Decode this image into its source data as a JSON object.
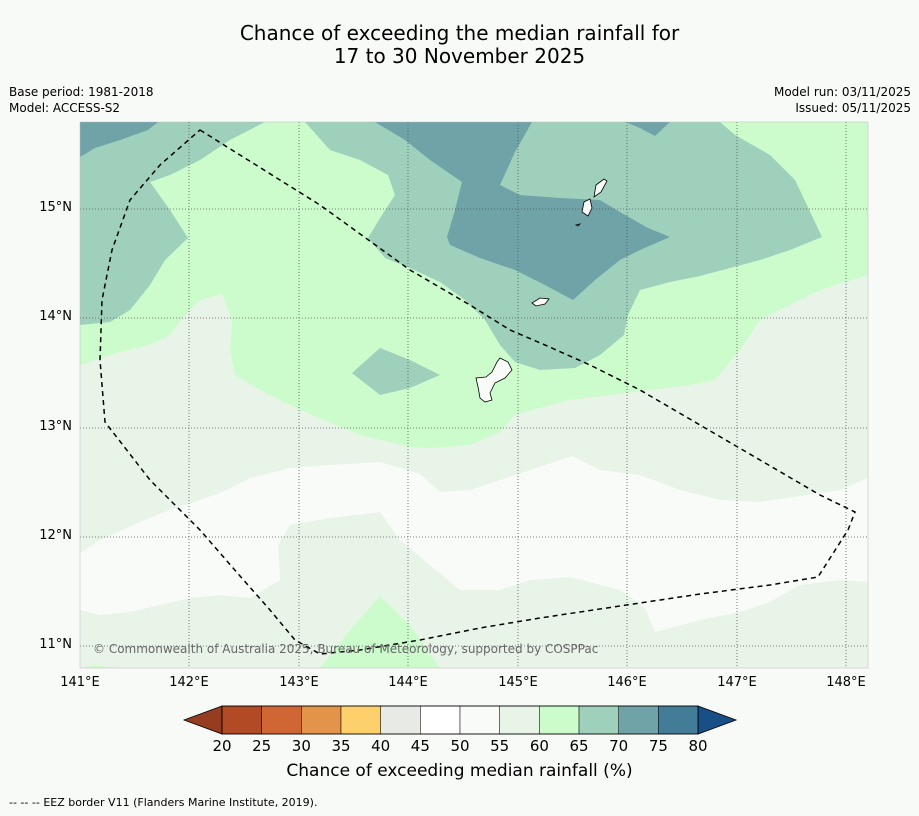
{
  "title": {
    "line1": "Chance of exceeding the median rainfall for",
    "line2": "17 to 30 November 2025"
  },
  "meta": {
    "base_period": "Base period: 1981-2018",
    "model": "Model: ACCESS-S2",
    "model_run": "Model run: 03/11/2025",
    "issued": "Issued: 05/11/2025"
  },
  "map": {
    "lat_labels": [
      "15°N",
      "14°N",
      "13°N",
      "12°N",
      "11°N"
    ],
    "lon_labels": [
      "141°E",
      "142°E",
      "143°E",
      "144°E",
      "145°E",
      "146°E",
      "147°E",
      "148°E"
    ],
    "copyright": "© Commonwealth of Australia 2025, Bureau of Meteorology, supported by COSPPac",
    "colors": {
      "p50_55": "#f9fbf8",
      "p55_60": "#e9f4e8",
      "p60_65": "#ccfccc",
      "p65_70": "#9ed0bb",
      "p70_75": "#6fa3a8",
      "land": "#f9fbf8",
      "eez": "#000000"
    }
  },
  "colorbar": {
    "ticks": [
      "20",
      "25",
      "30",
      "35",
      "40",
      "45",
      "50",
      "55",
      "60",
      "65",
      "70",
      "75",
      "80"
    ],
    "segment_colors": [
      "#b24a26",
      "#d06634",
      "#e3944a",
      "#fdd06c",
      "#e8ebe5",
      "#ffffff",
      "#f9fbf8",
      "#e9f4e8",
      "#ccfccc",
      "#9ed0bb",
      "#6fa3a8",
      "#427c97"
    ],
    "low_extend_color": "#963c20",
    "high_extend_color": "#174f86",
    "title": "Chance of exceeding median rainfall (%)"
  },
  "legend": {
    "eez_line_sample": "--  --  --",
    "eez_text": "EEZ border V11 (Flanders Marine Institute, 2019)."
  }
}
